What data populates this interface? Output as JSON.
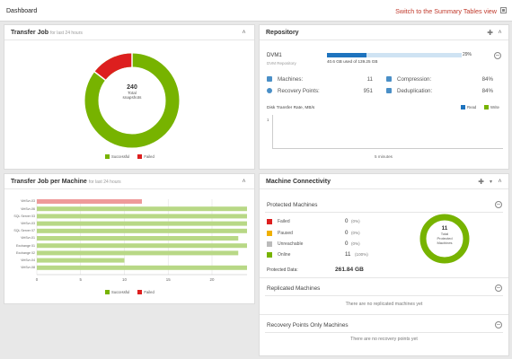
{
  "topbar": {
    "title": "Dashboard",
    "switch_link": "Switch to the Summary Tables view"
  },
  "transfer_job": {
    "title": "Transfer Job",
    "subtitle": "for last 24 hours",
    "center_count": "240",
    "center_line1": "Total",
    "center_line2": "snapshots",
    "legend": [
      "Successful",
      "Failed"
    ],
    "colors": {
      "successful": "#77b300",
      "failed": "#dd1f1f"
    },
    "chart_data": {
      "type": "pie",
      "labels": [
        "Successful",
        "Failed"
      ],
      "values": [
        205,
        35
      ],
      "total": 240
    }
  },
  "transfer_per_machine": {
    "title": "Transfer Job per Machine",
    "subtitle": "for last 24 hours",
    "legend": [
      "Successful",
      "Failed"
    ],
    "chart_data": {
      "type": "bar",
      "orientation": "horizontal",
      "categories": [
        "VirtSvr-03",
        "VirtSvr-06",
        "SQL Server 03",
        "VirtSvr-03",
        "SQL Server 07",
        "VirtSvr-01",
        "Exchange 01",
        "Exchange 02",
        "VirtSvr-04",
        "VirtSvr-08"
      ],
      "series": [
        {
          "name": "Successful",
          "values": [
            0,
            24,
            24,
            24,
            24,
            23,
            24,
            23,
            10,
            24
          ]
        },
        {
          "name": "Failed",
          "values": [
            12,
            0,
            0,
            0,
            0,
            0,
            0,
            0,
            0,
            0
          ]
        }
      ],
      "xlim": [
        0,
        24
      ],
      "xticks": [
        "0",
        "5",
        "10",
        "15",
        "20"
      ]
    }
  },
  "repository": {
    "title": "Repository",
    "name": "DVM1",
    "type": "DVM Repository",
    "usage_text": "40.6 GB used of 139.25 GB",
    "usage_percent": "29%",
    "usage_fraction": 0.29,
    "stats": [
      {
        "label": "Machines:",
        "value": "11",
        "icon": "machines-icon"
      },
      {
        "label": "Recovery Points:",
        "value": "951",
        "icon": "recovery-points-icon"
      },
      {
        "label": "Compression:",
        "value": "84%",
        "icon": "compression-icon"
      },
      {
        "label": "Deduplication:",
        "value": "84%",
        "icon": "deduplication-icon"
      }
    ],
    "disk_title": "Disk Transfer Rate, MB/s",
    "disk_legend": [
      "Read",
      "Write"
    ],
    "disk_colors": {
      "read": "#1e73be",
      "write": "#77b300"
    },
    "disk_ylabel": "1",
    "disk_xlabel": "5 minutes"
  },
  "connectivity": {
    "title": "Machine Connectivity",
    "protected_title": "Protected Machines",
    "statuses": [
      {
        "label": "Failed",
        "count": "0",
        "pct": "(0%)",
        "color": "#dd1f1f"
      },
      {
        "label": "Paused",
        "count": "0",
        "pct": "(0%)",
        "color": "#f0b000"
      },
      {
        "label": "Unreachable",
        "count": "0",
        "pct": "(0%)",
        "color": "#bbbbbb"
      },
      {
        "label": "Online",
        "count": "11",
        "pct": "(100%)",
        "color": "#77b300"
      }
    ],
    "protected_data_label": "Protected Data:",
    "protected_data_value": "261.84 GB",
    "donut_count": "11",
    "donut_line1": "Total",
    "donut_line2": "Protected",
    "donut_line3": "Machines",
    "replicated_title": "Replicated Machines",
    "replicated_empty": "There are no replicated machines yet",
    "recovery_only_title": "Recovery Points Only Machines",
    "recovery_only_empty": "There are no recovery points yet"
  }
}
